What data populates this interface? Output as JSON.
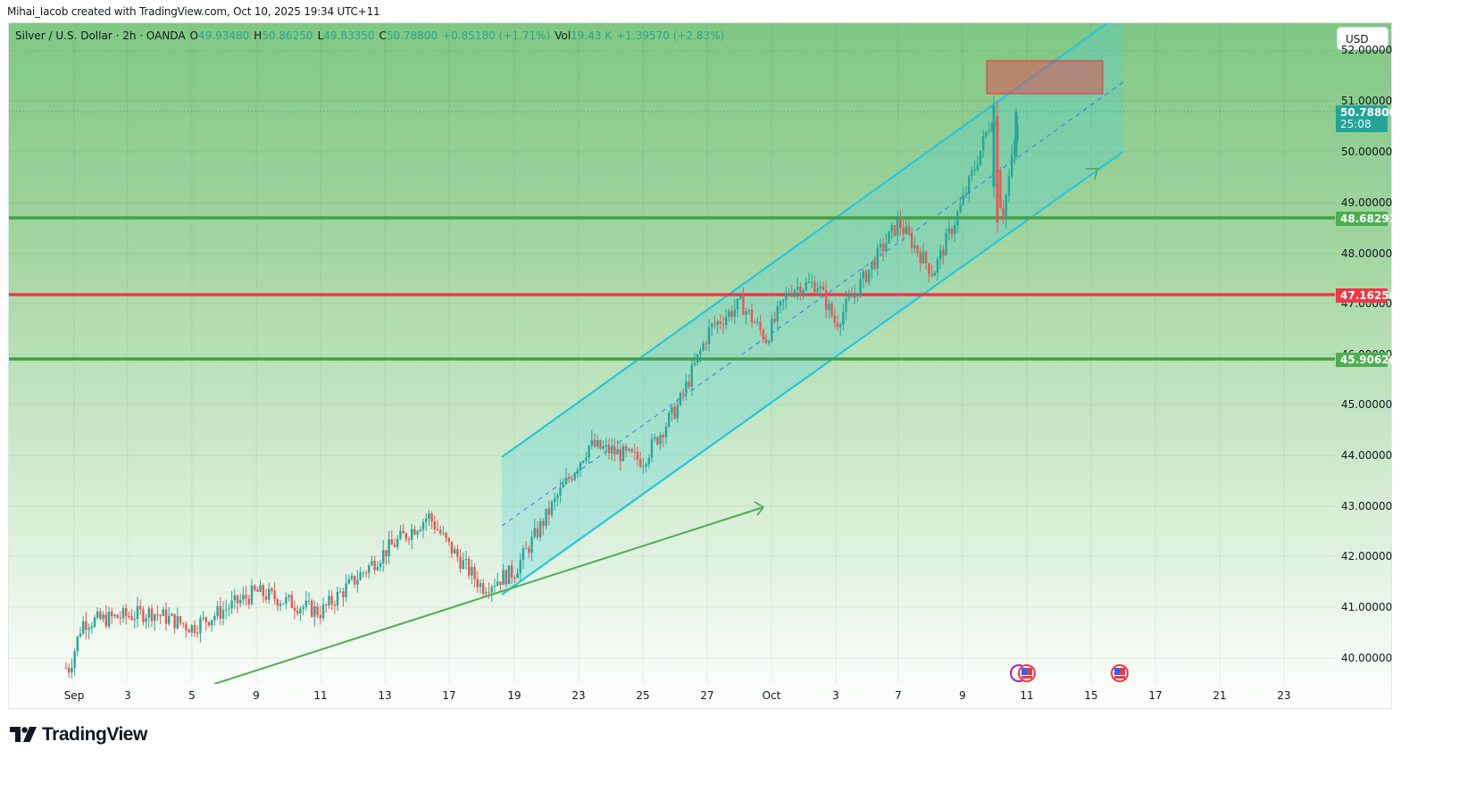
{
  "header": {
    "credit": "Mihai_Iacob created with TradingView.com, Oct 10, 2025 19:34 UTC+11"
  },
  "legend": {
    "symbol": "Silver / U.S. Dollar · 2h · OANDA",
    "open_label": "O",
    "open": "49.93480",
    "high_label": "H",
    "high": "50.86250",
    "low_label": "L",
    "low": "49.83350",
    "close_label": "C",
    "close": "50.78800",
    "change": "+0.85180 (+1.71%)",
    "vol_label": "Vol",
    "vol": "19.43 K",
    "vol_change": "+1.39570 (+2.83%)"
  },
  "currency_button": "USD",
  "price_axis": {
    "ticks": [
      "52.00000",
      "51.00000",
      "50.00000",
      "49.00000",
      "48.00000",
      "47.00000",
      "46.00000",
      "45.00000",
      "44.00000",
      "43.00000",
      "42.00000",
      "41.00000",
      "40.00000"
    ],
    "last_price": "50.78800",
    "countdown": "25:08",
    "levels": [
      {
        "value": "48.68291",
        "color": "#4caf50"
      },
      {
        "value": "47.16256",
        "color": "#f23645"
      },
      {
        "value": "45.90620",
        "color": "#4caf50"
      }
    ]
  },
  "time_axis": {
    "ticks": [
      "Sep",
      "3",
      "5",
      "9",
      "11",
      "13",
      "17",
      "19",
      "23",
      "25",
      "27",
      "Oct",
      "3",
      "7",
      "9",
      "11",
      "15",
      "17",
      "21",
      "23"
    ]
  },
  "events": [
    "us-economic-event",
    "us-economic-event"
  ],
  "branding": {
    "logo_text": "TradingView"
  },
  "chart_data": {
    "type": "candlestick",
    "title": "Silver / U.S. Dollar · 2h · OANDA",
    "xlabel": "",
    "ylabel": "USD",
    "x_ticks": [
      "Sep",
      "3",
      "5",
      "9",
      "11",
      "13",
      "17",
      "19",
      "23",
      "25",
      "27",
      "Oct",
      "3",
      "7",
      "9",
      "11",
      "15",
      "17",
      "21",
      "23"
    ],
    "y_ticks": [
      40,
      41,
      42,
      43,
      44,
      45,
      46,
      47,
      48,
      49,
      50,
      51,
      52
    ],
    "ylim": [
      39.5,
      52.3
    ],
    "grid": true,
    "ohlc_last": {
      "open": 49.9348,
      "high": 50.8625,
      "low": 49.8335,
      "close": 50.788
    },
    "approx_path": [
      {
        "date": "Sep 1",
        "price": 39.8
      },
      {
        "date": "Sep 2",
        "price": 40.7
      },
      {
        "date": "Sep 4",
        "price": 40.9
      },
      {
        "date": "Sep 5",
        "price": 40.6
      },
      {
        "date": "Sep 9",
        "price": 41.3
      },
      {
        "date": "Sep 11",
        "price": 40.9
      },
      {
        "date": "Sep 12",
        "price": 41.5
      },
      {
        "date": "Sep 13",
        "price": 42.1
      },
      {
        "date": "Sep 16",
        "price": 42.8
      },
      {
        "date": "Sep 17",
        "price": 42.2
      },
      {
        "date": "Sep 18",
        "price": 41.4
      },
      {
        "date": "Sep 19",
        "price": 41.7
      },
      {
        "date": "Sep 22",
        "price": 43.2
      },
      {
        "date": "Sep 23",
        "price": 44.2
      },
      {
        "date": "Sep 25",
        "price": 43.9
      },
      {
        "date": "Sep 26",
        "price": 45.0
      },
      {
        "date": "Sep 27",
        "price": 46.5
      },
      {
        "date": "Sep 29",
        "price": 47.0
      },
      {
        "date": "Sep 30",
        "price": 46.3
      },
      {
        "date": "Oct 1",
        "price": 47.3
      },
      {
        "date": "Oct 2",
        "price": 47.4
      },
      {
        "date": "Oct 3",
        "price": 46.6
      },
      {
        "date": "Oct 6",
        "price": 48.0
      },
      {
        "date": "Oct 7",
        "price": 48.6
      },
      {
        "date": "Oct 8",
        "price": 47.6
      },
      {
        "date": "Oct 9",
        "price": 49.0
      },
      {
        "date": "Oct 10",
        "price": 50.8
      },
      {
        "date": "Oct 10b",
        "price": 48.6
      },
      {
        "date": "Oct 11",
        "price": 50.79
      }
    ],
    "horizontal_levels": [
      48.68291,
      47.16256,
      45.9062
    ],
    "drawings": {
      "ascending_channel": {
        "start_date": "Sep 19",
        "end_date": "Oct 16",
        "lower_start": 41.3,
        "lower_end": 50.0,
        "upper_start": 43.95,
        "upper_end": 52.4
      },
      "trendline": {
        "from": [
          "Sep 6",
          39.5
        ],
        "to": [
          "Sep 30",
          43.0
        ]
      },
      "resistance_box": {
        "from_date": "Oct 10",
        "to_date": "Oct 14",
        "top": 51.8,
        "bottom": 51.15
      }
    }
  }
}
